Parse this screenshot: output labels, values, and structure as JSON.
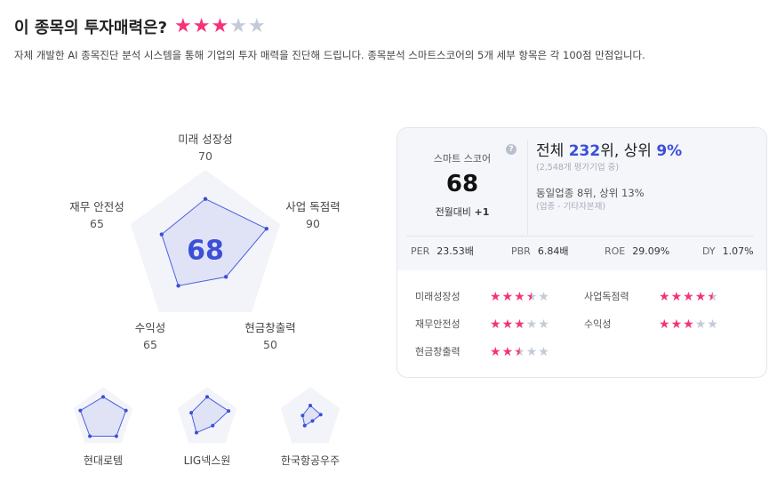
{
  "header": {
    "title": "이 종목의 투자매력은?",
    "rating": 3,
    "max_rating": 5,
    "description": "자체 개발한 AI 종목진단 분석 시스템을 통해 기업의 투자 매력을 진단해 드립니다. 종목분석 스마트스코어의 5개 세부 항목은 각 100점 만점입니다."
  },
  "radar": {
    "score": "68",
    "axes": [
      {
        "name": "미래 성장성",
        "value": 70
      },
      {
        "name": "사업 독점력",
        "value": 90
      },
      {
        "name": "현금창출력",
        "value": 50
      },
      {
        "name": "수익성",
        "value": 65
      },
      {
        "name": "재무 안전성",
        "value": 65
      }
    ]
  },
  "peers": [
    {
      "name": "현대로템",
      "values": [
        75,
        85,
        80,
        80,
        85
      ]
    },
    {
      "name": "LIG넥스원",
      "values": [
        75,
        80,
        35,
        65,
        60
      ]
    },
    {
      "name": "한국항공우주",
      "values": [
        45,
        40,
        15,
        35,
        30
      ]
    }
  ],
  "card": {
    "smart_label": "스마트 스코어",
    "smart_score": "68",
    "mom_label": "전월대비",
    "mom_value": "+1",
    "rank_prefix": "전체 ",
    "rank": "232",
    "rank_mid": "위, 상위 ",
    "top_pct": "9%",
    "rank_sub": "(2,548개 평가기업 중)",
    "industry_rank": "동일업종 8위, 상위 13%",
    "industry_sub": "(업종 - 기타자본재)",
    "metrics": [
      {
        "k": "PER",
        "v": "23.53배"
      },
      {
        "k": "PBR",
        "v": "6.84배"
      },
      {
        "k": "ROE",
        "v": "29.09%"
      },
      {
        "k": "DY",
        "v": "1.07%"
      }
    ],
    "ratings": [
      {
        "name": "미래성장성",
        "stars": 3.5
      },
      {
        "name": "사업독점력",
        "stars": 4.5
      },
      {
        "name": "재무안전성",
        "stars": 3
      },
      {
        "name": "수익성",
        "stars": 3
      },
      {
        "name": "현금창출력",
        "stars": 2.5
      }
    ]
  },
  "colors": {
    "accent": "#3b4fd8",
    "star": "#f5327a",
    "star_off": "#c3cad8"
  }
}
